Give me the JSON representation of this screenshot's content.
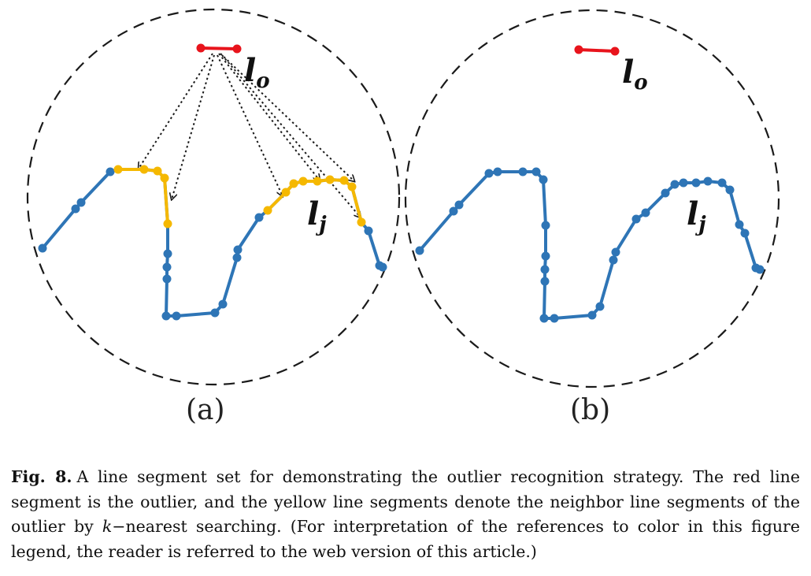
{
  "figure": {
    "panel_a": {
      "label": "(a)",
      "outlier_label": "l",
      "outlier_sub": "o",
      "segment_label": "l",
      "segment_sub": "j"
    },
    "panel_b": {
      "label": "(b)",
      "outlier_label": "l",
      "outlier_sub": "o",
      "segment_label": "l",
      "segment_sub": "j"
    },
    "colors": {
      "outlier": "#e8141c",
      "neighbor": "#f5b800",
      "segment": "#2e75b6",
      "circle": "#1a1a1a",
      "arrow": "#1a1a1a"
    }
  },
  "caption": {
    "fig_number": "Fig. 8.",
    "text_1": "A line segment set for demonstrating the outlier recognition strategy. The red line segment is the outlier, and the yellow line segments denote the neighbor line segments of the outlier by ",
    "k_symbol": "k",
    "text_2": "−nearest searching.  (For interpretation of the references to color in this figure legend, the reader is referred to the web version of this article.)"
  }
}
